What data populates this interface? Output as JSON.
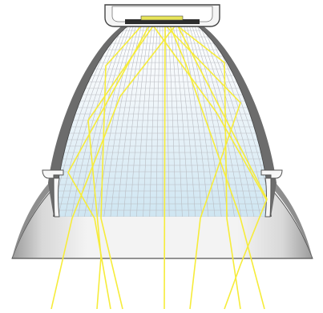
{
  "diagram": {
    "subject": "reflector-lamp-light-ray-diagram",
    "components": [
      {
        "id": "led-mount",
        "icon": "heatsink-mount-icon"
      },
      {
        "id": "led-chip",
        "icon": "led-chip-icon"
      },
      {
        "id": "parabolic-reflector",
        "icon": "parabolic-reflector-icon"
      },
      {
        "id": "outer-housing",
        "icon": "lamp-housing-icon"
      },
      {
        "id": "light-rays",
        "icon": "light-ray-icon"
      }
    ],
    "colors": {
      "ray": "#f6ec3a",
      "reflector_top": "#ffffff",
      "reflector_bottom": "#cfe6f2",
      "grid_line": "#b9bcc2",
      "outline": "#4a4a4a",
      "housing_shadow": "#8a8a8a",
      "housing_light": "#f2f2f2"
    }
  }
}
